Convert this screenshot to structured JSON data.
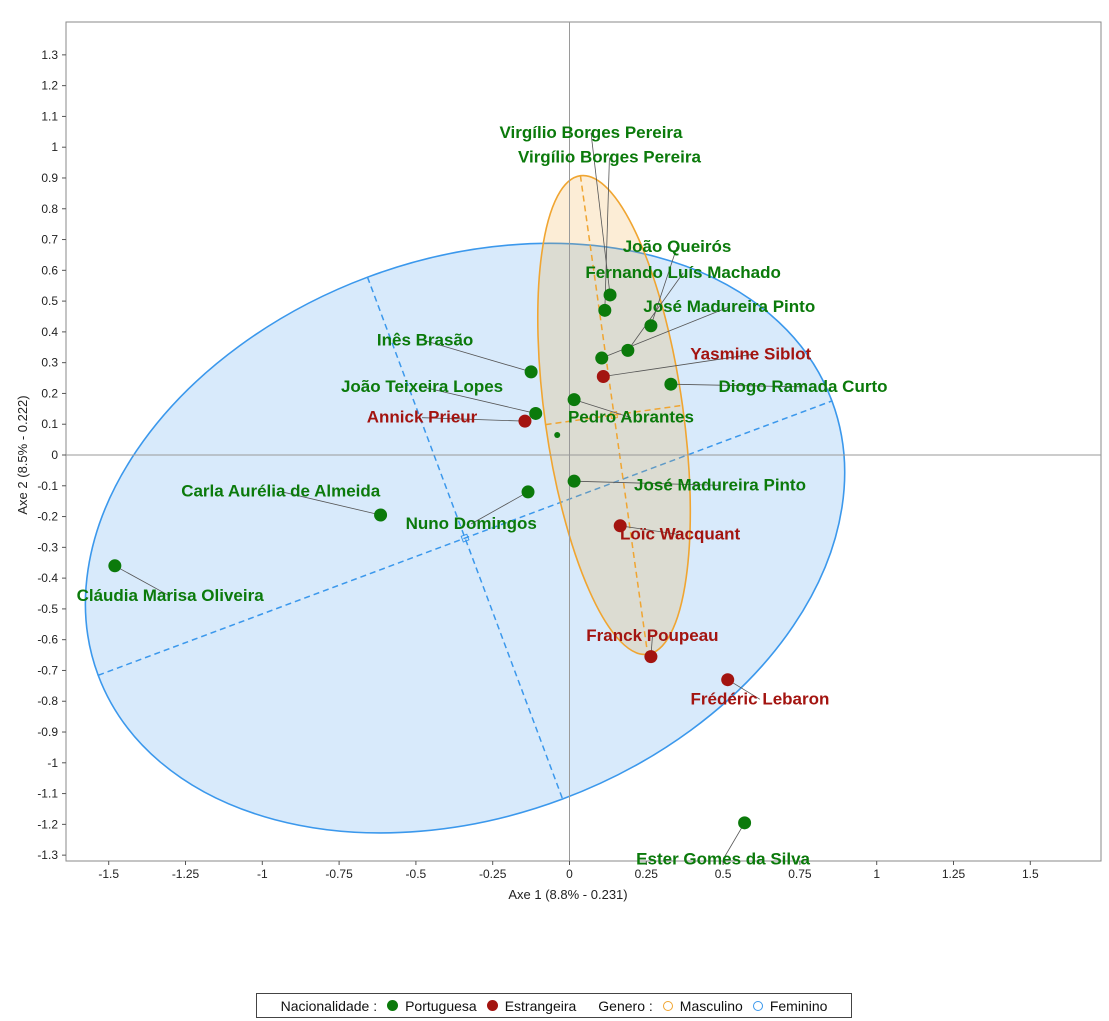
{
  "chart_data": {
    "type": "scatter",
    "xlabel": "Axe 1 (8.8% - 0.231)",
    "ylabel": "Axe 2 (8.5% - 0.222)",
    "xlim": [
      -1.65,
      1.72
    ],
    "ylim": [
      -1.34,
      1.39
    ],
    "xticks": [
      -1.5,
      -1.25,
      -1,
      -0.75,
      -0.5,
      -0.25,
      0,
      0.25,
      0.5,
      0.75,
      1,
      1.25,
      1.5
    ],
    "yticks": [
      1.3,
      1.2,
      1.1,
      1,
      0.9,
      0.8,
      0.7,
      0.6,
      0.5,
      0.4,
      0.3,
      0.2,
      0.1,
      0,
      -0.1,
      -0.2,
      -0.3,
      -0.4,
      -0.5,
      -0.6,
      -0.7,
      -0.8,
      -0.9,
      -1,
      -1.1,
      -1.2,
      -1.3
    ],
    "colors": {
      "portuguesa": "#0b7a0b",
      "estrangeira": "#a31410",
      "masculino": "#f0a531",
      "feminino": "#3b98ec"
    },
    "points": [
      {
        "label": "Virgílio Borges Pereira",
        "x": 0.132,
        "y": 0.52,
        "group": "portuguesa",
        "lx": 0.07,
        "ly": 1.03
      },
      {
        "label": "Virgílio Borges Pereira",
        "x": 0.115,
        "y": 0.47,
        "group": "portuguesa",
        "lx": 0.13,
        "ly": 0.95
      },
      {
        "label": "João Queirós",
        "x": 0.265,
        "y": 0.42,
        "group": "portuguesa",
        "lx": 0.35,
        "ly": 0.66
      },
      {
        "label": "Fernando Luís Machado",
        "x": 0.19,
        "y": 0.34,
        "group": "portuguesa",
        "lx": 0.37,
        "ly": 0.575
      },
      {
        "label": "José Madureira Pinto",
        "x": 0.105,
        "y": 0.315,
        "group": "portuguesa",
        "lx": 0.52,
        "ly": 0.465
      },
      {
        "label": "Inês Brasão",
        "x": -0.125,
        "y": 0.27,
        "group": "portuguesa",
        "lx": -0.47,
        "ly": 0.355
      },
      {
        "label": "Yasmine Siblot",
        "x": 0.11,
        "y": 0.255,
        "group": "estrangeira",
        "lx": 0.59,
        "ly": 0.31
      },
      {
        "label": "Diogo Ramada Curto",
        "x": 0.33,
        "y": 0.23,
        "group": "portuguesa",
        "lx": 0.76,
        "ly": 0.205
      },
      {
        "label": "João Teixeira Lopes",
        "x": -0.11,
        "y": 0.135,
        "group": "portuguesa",
        "lx": -0.48,
        "ly": 0.205
      },
      {
        "label": "Pedro Abrantes",
        "x": 0.015,
        "y": 0.18,
        "group": "portuguesa",
        "lx": 0.2,
        "ly": 0.105
      },
      {
        "label": "Annick Prieur",
        "x": -0.145,
        "y": 0.11,
        "group": "estrangeira",
        "lx": -0.48,
        "ly": 0.105
      },
      {
        "label": "José Madureira Pinto",
        "x": 0.015,
        "y": -0.085,
        "group": "portuguesa",
        "lx": 0.49,
        "ly": -0.115
      },
      {
        "label": "Nuno Domingos",
        "x": -0.135,
        "y": -0.12,
        "group": "portuguesa",
        "lx": -0.32,
        "ly": -0.24
      },
      {
        "label": "Carla Aurélia de Almeida",
        "x": -0.615,
        "y": -0.195,
        "group": "portuguesa",
        "lx": -0.94,
        "ly": -0.135
      },
      {
        "label": "Loïc Wacquant",
        "x": 0.165,
        "y": -0.23,
        "group": "estrangeira",
        "lx": 0.36,
        "ly": -0.275
      },
      {
        "label": "Cláudia Marisa Oliveira",
        "x": -1.48,
        "y": -0.36,
        "group": "portuguesa",
        "lx": -1.3,
        "ly": -0.475
      },
      {
        "label": "Franck Poupeau",
        "x": 0.265,
        "y": -0.655,
        "group": "estrangeira",
        "lx": 0.27,
        "ly": -0.605
      },
      {
        "label": "Frédéric Lebaron",
        "x": 0.515,
        "y": -0.73,
        "group": "estrangeira",
        "lx": 0.62,
        "ly": -0.81
      },
      {
        "label": "Ester Gomes da Silva",
        "x": 0.57,
        "y": -1.195,
        "group": "portuguesa",
        "lx": 0.5,
        "ly": -1.33
      }
    ],
    "centroid_points": [
      {
        "x": -0.04,
        "y": 0.065,
        "group": "portuguesa"
      }
    ],
    "ellipses": [
      {
        "group": "feminino",
        "cx": -0.34,
        "cy": -0.27,
        "rx": 1.275,
        "ry": 0.905,
        "angle_deg": -20.5
      },
      {
        "group": "masculino",
        "cx": 0.145,
        "cy": 0.13,
        "rx": 0.225,
        "ry": 0.785,
        "angle_deg": -8
      }
    ],
    "legend": {
      "nationality_title": "Nacionalidade :",
      "portuguesa": "Portuguesa",
      "estrangeira": "Estrangeira",
      "gender_title": "Genero :",
      "masculino": "Masculino",
      "feminino": "Feminino"
    }
  }
}
